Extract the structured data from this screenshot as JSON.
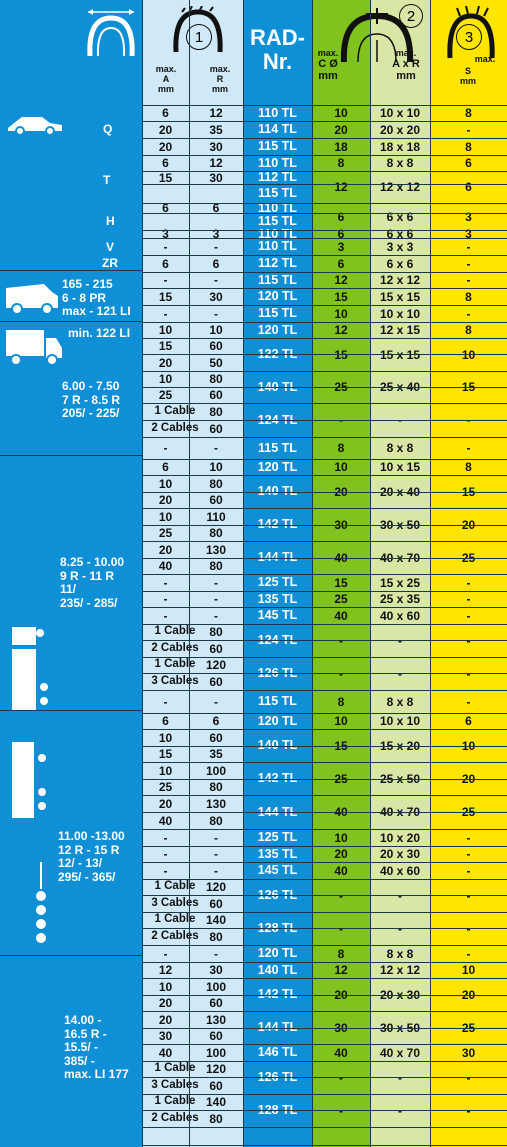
{
  "header": {
    "a_label": [
      "max.",
      "A",
      "mm"
    ],
    "r_label": [
      "max.",
      "R",
      "mm"
    ],
    "rad_label": [
      "RAD-",
      "Nr."
    ],
    "c_label": [
      "max.",
      "C Ø",
      "mm"
    ],
    "axr_label": [
      "max.",
      "A x R",
      "mm"
    ],
    "s_label": [
      "S",
      "mm"
    ],
    "s_max": "max.",
    "badge1": "1",
    "badge2": "2",
    "badge3": "3"
  },
  "speed_labels": [
    "Q",
    "T",
    "H",
    "V",
    "ZR"
  ],
  "group_labels": [
    "165 - 215\n6 - 8 PR\nmax - 121 LI",
    "min. 122 LI",
    "6.00 - 7.50\n7 R - 8.5 R\n205/ - 225/",
    "8.25 - 10.00\n9 R - 11 R\n11/\n235/ - 285/",
    "11.00 -13.00\n12 R - 15 R\n12/ - 13/\n295/ - 365/",
    "14.00 -\n16.5 R -\n15.5/ -\n385/ -\nmax. LI 177"
  ],
  "rows": [
    {
      "a": "6",
      "r": "12",
      "rad": "110 TL",
      "c": "10",
      "axr": "10 x 10",
      "s": "8"
    },
    {
      "a": "20",
      "r": "35",
      "rad": "114 TL",
      "c": "20",
      "axr": "20 x 20",
      "s": "-"
    },
    {
      "a": "20",
      "r": "30",
      "rad": "115 TL",
      "c": "18",
      "axr": "18 x 18",
      "s": "8"
    },
    {
      "a": "6",
      "r": "12",
      "rad": "110 TL",
      "c": "8",
      "axr": "8 x 8",
      "s": "6"
    },
    {
      "a": "15",
      "r": "30",
      "rad": "112 TL",
      "c": "12",
      "axr": "12 x 12",
      "s": "6"
    },
    {
      "a": "",
      "r": "",
      "rad": "115 TL",
      "c": "",
      "axr": "",
      "s": ""
    },
    {
      "a": "6",
      "r": "6",
      "rad": "110 TL",
      "c": "6",
      "axr": "6 x 6",
      "s": "3"
    },
    {
      "a": "",
      "r": "",
      "rad": "115 TL",
      "c": "",
      "axr": "",
      "s": ""
    },
    {
      "a": "3",
      "r": "3",
      "rad": "110 TL",
      "c": "6",
      "axr": "6 x 6",
      "s": "3"
    },
    {
      "a": "-",
      "r": "-",
      "rad": "110 TL",
      "c": "3",
      "axr": "3 x 3",
      "s": "-"
    },
    {
      "a": "6",
      "r": "6",
      "rad": "112 TL",
      "c": "6",
      "axr": "6 x 6",
      "s": "-"
    },
    {
      "a": "-",
      "r": "-",
      "rad": "115 TL",
      "c": "12",
      "axr": "12 x 12",
      "s": "-"
    },
    {
      "a": "15",
      "r": "30",
      "rad": "120 TL",
      "c": "15",
      "axr": "15 x 15",
      "s": "8"
    },
    {
      "a": "-",
      "r": "-",
      "rad": "115 TL",
      "c": "10",
      "axr": "10 x 10",
      "s": "-"
    },
    {
      "a": "10",
      "r": "10",
      "rad": "120 TL",
      "c": "12",
      "axr": "12 x 15",
      "s": "8"
    },
    {
      "a": "15",
      "r": "60",
      "rad": "122 TL",
      "c": "15",
      "axr": "15 x 15",
      "s": "10"
    },
    {
      "a": "20",
      "r": "50",
      "rad": "",
      "c": "",
      "axr": "",
      "s": ""
    },
    {
      "a": "10",
      "r": "80",
      "rad": "140 TL",
      "c": "25",
      "axr": "25 x 40",
      "s": "15"
    },
    {
      "a": "25",
      "r": "60",
      "rad": "",
      "c": "",
      "axr": "",
      "s": ""
    },
    {
      "a": "1 Cable",
      "r": "80",
      "rad": "124 TL",
      "c": "-",
      "axr": "-",
      "s": "-"
    },
    {
      "a": "2 Cables",
      "r": "60",
      "rad": "",
      "c": "",
      "axr": "",
      "s": ""
    },
    {
      "a": "-",
      "r": "-",
      "rad": "115 TL",
      "c": "8",
      "axr": "8 x 8",
      "s": "-"
    },
    {
      "a": "6",
      "r": "10",
      "rad": "120 TL",
      "c": "10",
      "axr": "10 x 15",
      "s": "8"
    },
    {
      "a": "10",
      "r": "80",
      "rad": "140 TL",
      "c": "20",
      "axr": "20 x 40",
      "s": "15"
    },
    {
      "a": "20",
      "r": "60",
      "rad": "",
      "c": "",
      "axr": "",
      "s": ""
    },
    {
      "a": "10",
      "r": "110",
      "rad": "142 TL",
      "c": "30",
      "axr": "30 x 50",
      "s": "20"
    },
    {
      "a": "25",
      "r": "80",
      "rad": "",
      "c": "",
      "axr": "",
      "s": ""
    },
    {
      "a": "20",
      "r": "130",
      "rad": "144 TL",
      "c": "40",
      "axr": "40 x 70",
      "s": "25"
    },
    {
      "a": "40",
      "r": "80",
      "rad": "",
      "c": "",
      "axr": "",
      "s": ""
    },
    {
      "a": "-",
      "r": "-",
      "rad": "125 TL",
      "c": "15",
      "axr": "15 x 25",
      "s": "-"
    },
    {
      "a": "-",
      "r": "-",
      "rad": "135 TL",
      "c": "25",
      "axr": "25 x 35",
      "s": "-"
    },
    {
      "a": "-",
      "r": "-",
      "rad": "145 TL",
      "c": "40",
      "axr": "40 x 60",
      "s": "-"
    },
    {
      "a": "1 Cable",
      "r": "80",
      "rad": "124 TL",
      "c": "-",
      "axr": "-",
      "s": "-"
    },
    {
      "a": "2 Cables",
      "r": "60",
      "rad": "",
      "c": "",
      "axr": "",
      "s": ""
    },
    {
      "a": "1 Cable",
      "r": "120",
      "rad": "126 TL",
      "c": "-",
      "axr": "-",
      "s": "-"
    },
    {
      "a": "3 Cables",
      "r": "60",
      "rad": "",
      "c": "",
      "axr": "",
      "s": ""
    },
    {
      "a": "-",
      "r": "-",
      "rad": "115 TL",
      "c": "8",
      "axr": "8 x 8",
      "s": "-"
    },
    {
      "a": "6",
      "r": "6",
      "rad": "120 TL",
      "c": "10",
      "axr": "10 x 10",
      "s": "6"
    },
    {
      "a": "10",
      "r": "60",
      "rad": "140 TL",
      "c": "15",
      "axr": "15 x 20",
      "s": "10"
    },
    {
      "a": "15",
      "r": "35",
      "rad": "",
      "c": "",
      "axr": "",
      "s": ""
    },
    {
      "a": "10",
      "r": "100",
      "rad": "142 TL",
      "c": "25",
      "axr": "25 x 50",
      "s": "20"
    },
    {
      "a": "25",
      "r": "80",
      "rad": "",
      "c": "",
      "axr": "",
      "s": ""
    },
    {
      "a": "20",
      "r": "130",
      "rad": "144 TL",
      "c": "40",
      "axr": "40 x 70",
      "s": "25"
    },
    {
      "a": "40",
      "r": "80",
      "rad": "",
      "c": "",
      "axr": "",
      "s": ""
    },
    {
      "a": "-",
      "r": "-",
      "rad": "125 TL",
      "c": "10",
      "axr": "10 x 20",
      "s": "-"
    },
    {
      "a": "-",
      "r": "-",
      "rad": "135 TL",
      "c": "20",
      "axr": "20 x 30",
      "s": "-"
    },
    {
      "a": "-",
      "r": "-",
      "rad": "145 TL",
      "c": "40",
      "axr": "40 x 60",
      "s": "-"
    },
    {
      "a": "1 Cable",
      "r": "120",
      "rad": "126 TL",
      "c": "-",
      "axr": "-",
      "s": "-"
    },
    {
      "a": "3 Cables",
      "r": "60",
      "rad": "",
      "c": "",
      "axr": "",
      "s": ""
    },
    {
      "a": "1 Cable",
      "r": "140",
      "rad": "128 TL",
      "c": "-",
      "axr": "-",
      "s": "-"
    },
    {
      "a": "2 Cables",
      "r": "80",
      "rad": "",
      "c": "",
      "axr": "",
      "s": ""
    },
    {
      "a": "-",
      "r": "-",
      "rad": "120 TL",
      "c": "8",
      "axr": "8 x 8",
      "s": "-"
    },
    {
      "a": "12",
      "r": "30",
      "rad": "140 TL",
      "c": "12",
      "axr": "12 x 12",
      "s": "10"
    },
    {
      "a": "10",
      "r": "100",
      "rad": "142 TL",
      "c": "20",
      "axr": "20 x 30",
      "s": "20"
    },
    {
      "a": "20",
      "r": "60",
      "rad": "",
      "c": "",
      "axr": "",
      "s": ""
    },
    {
      "a": "20",
      "r": "130",
      "rad": "144 TL",
      "c": "30",
      "axr": "30 x 50",
      "s": "25"
    },
    {
      "a": "30",
      "r": "60",
      "rad": "",
      "c": "",
      "axr": "",
      "s": ""
    },
    {
      "a": "40",
      "r": "100",
      "rad": "146 TL",
      "c": "40",
      "axr": "40 x 70",
      "s": "30"
    },
    {
      "a": "1 Cable",
      "r": "120",
      "rad": "126 TL",
      "c": "-",
      "axr": "-",
      "s": "-"
    },
    {
      "a": "3 Cables",
      "r": "60",
      "rad": "",
      "c": "",
      "axr": "",
      "s": ""
    },
    {
      "a": "1 Cable",
      "r": "140",
      "rad": "128 TL",
      "c": "-",
      "axr": "-",
      "s": "-"
    },
    {
      "a": "2 Cables",
      "r": "80",
      "rad": "",
      "c": "",
      "axr": "",
      "s": ""
    }
  ],
  "icons": [
    "tire-profile-icon",
    "tire-a-icon",
    "tire-c-icon",
    "tire-s-icon",
    "car-icon",
    "van-icon",
    "truck-icon",
    "lorry-icon",
    "truck-front-icon",
    "trailer-axle-icon",
    "semi-trailer-icon"
  ],
  "colors": {
    "blue": "#0e8fd6",
    "pale_blue": "#cfe9f8",
    "green": "#80c21e",
    "pale_green": "#d8e6a6",
    "yellow": "#ffe500"
  }
}
